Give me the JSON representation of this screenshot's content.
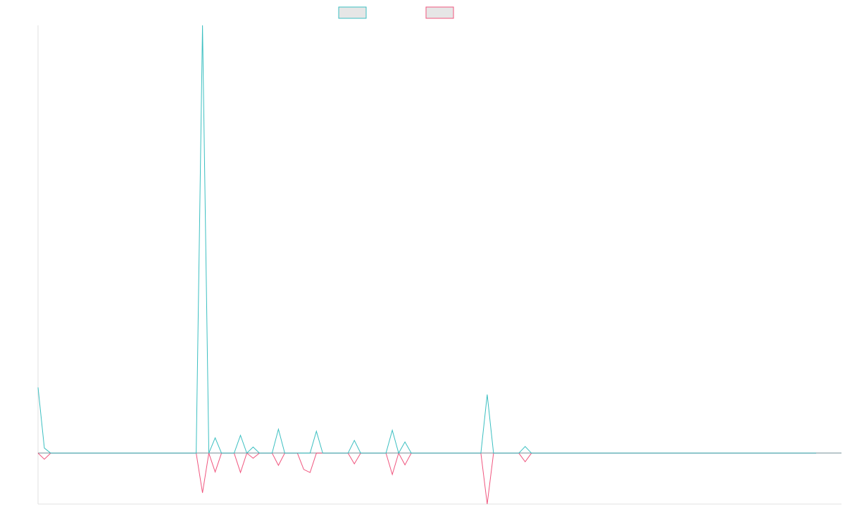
{
  "chart_data": {
    "type": "line",
    "title": "",
    "xlabel": "",
    "ylabel": "",
    "grid": false,
    "legend_placement": "top-center",
    "x_count": 128,
    "ylim": [
      -10,
      84
    ],
    "series": [
      {
        "color": "#3bbfc1",
        "values": [
          12.9,
          1.0,
          0,
          0,
          0,
          0,
          0,
          0,
          0,
          0,
          0,
          0,
          0,
          0,
          0,
          0,
          0,
          0,
          0,
          0,
          0,
          0,
          0,
          0,
          0,
          0,
          84.0,
          0,
          3.0,
          0,
          0,
          0,
          3.5,
          0,
          1.2,
          0,
          0,
          0,
          4.7,
          0,
          0,
          0,
          0,
          0,
          4.3,
          0,
          0,
          0,
          0,
          0,
          2.5,
          0,
          0,
          0,
          0,
          0,
          4.5,
          0,
          2.2,
          0,
          0,
          0,
          0,
          0,
          0,
          0,
          0,
          0,
          0,
          0,
          0,
          11.5,
          0,
          0,
          0,
          0,
          0,
          1.3,
          0,
          0,
          0,
          0,
          0,
          0,
          0,
          0,
          0,
          0,
          0,
          0,
          0,
          0,
          0,
          0,
          0,
          0,
          0,
          0,
          0,
          0,
          0,
          0,
          0,
          0,
          0,
          0,
          0,
          0,
          0,
          0,
          0,
          0,
          0,
          0,
          0,
          0,
          0,
          0,
          0,
          0,
          0,
          0,
          0,
          0
        ]
      },
      {
        "color": "#f0557e",
        "values": [
          0,
          -1.2,
          0,
          0,
          0,
          0,
          0,
          0,
          0,
          0,
          0,
          0,
          0,
          0,
          0,
          0,
          0,
          0,
          0,
          0,
          0,
          0,
          0,
          0,
          0,
          0,
          -7.8,
          0,
          -3.7,
          0,
          0,
          0,
          -3.8,
          0,
          -1.0,
          0,
          0,
          0,
          -2.4,
          0,
          0,
          0,
          -3.2,
          -3.8,
          0,
          0,
          0,
          0,
          0,
          0,
          -2.1,
          0,
          0,
          0,
          0,
          0,
          -4.2,
          0,
          -2.3,
          0,
          0,
          0,
          0,
          0,
          0,
          0,
          0,
          0,
          0,
          0,
          0,
          -10.0,
          0,
          0,
          0,
          0,
          0,
          -1.7,
          0,
          0,
          0,
          0,
          0,
          0,
          0,
          0,
          0,
          0,
          0,
          0,
          0,
          0,
          0,
          0,
          0,
          0,
          0,
          0,
          0,
          0,
          0,
          0,
          0,
          0,
          0,
          0,
          0,
          0,
          0,
          0,
          0,
          0,
          0,
          0,
          0,
          0,
          0,
          0,
          0,
          0,
          0,
          0,
          0,
          0
        ]
      }
    ]
  }
}
